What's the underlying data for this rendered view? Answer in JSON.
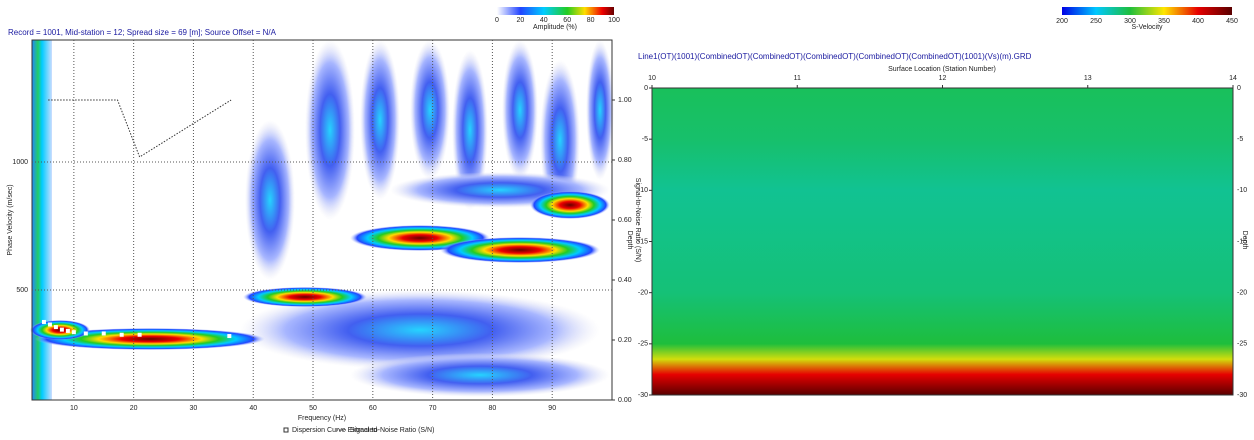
{
  "chart_data": [
    {
      "type": "dispersion",
      "title": "Record = 1001, Mid-station = 12; Spread size = 69 [m]; Source Offset = N/A",
      "xlabel": "Frequency (Hz)",
      "ylabel": "Phase Velocity (m/sec)",
      "y2label": "Signal-to-Noise Ratio (S/N)",
      "xlim": [
        3,
        100
      ],
      "xticks": [
        10,
        20,
        30,
        40,
        50,
        60,
        70,
        80,
        90
      ],
      "ylim": [
        70,
        1477
      ],
      "yticks": [
        500,
        1000
      ],
      "y2lim": [
        0,
        1.2
      ],
      "y2ticks": [
        {
          "value": 0,
          "label": "0.00"
        },
        {
          "value": 0.2,
          "label": "0.20"
        },
        {
          "value": 0.4,
          "label": "0.40"
        },
        {
          "value": 0.6,
          "label": "0.60"
        },
        {
          "value": 0.8,
          "label": "0.80"
        },
        {
          "value": 1,
          "label": "1.00"
        }
      ],
      "grid": true,
      "colorbar": {
        "label": "Amplitude (%)",
        "ticks": [
          0,
          20,
          40,
          60,
          80,
          100
        ]
      },
      "series": [
        {
          "name": "Dispersion Curve Extracted",
          "color": "#ffffff",
          "x": [
            5,
            6,
            7,
            8,
            9,
            10,
            12,
            15,
            18,
            21,
            36
          ],
          "values": [
            375,
            365,
            355,
            345,
            340,
            335,
            330,
            330,
            325,
            325,
            320
          ]
        },
        {
          "name": "Signal-to-Noise Ratio (S/N)",
          "color": "#333333",
          "axis": "y2",
          "x": [
            5.7,
            17.3,
            21,
            36.3
          ],
          "values": [
            1,
            1,
            0.81,
            1
          ]
        }
      ]
    },
    {
      "type": "grid",
      "title": "Line1(OT)(1001)(CombinedOT)(CombinedOT)(CombinedOT)(CombinedOT)(CombinedOT)(1001)(Vs)(m).GRD",
      "xlabel": "Surface Location (Station Number)",
      "ylabel": "Depth",
      "xlim": [
        10,
        14
      ],
      "xticks": [
        10,
        11,
        12,
        13,
        14
      ],
      "ylim": [
        -30,
        0
      ],
      "yticks": [
        0,
        -5,
        -10,
        -15,
        -20,
        -25,
        -30
      ],
      "colorbar": {
        "label": "S-Velocity",
        "ticks": [
          200,
          250,
          300,
          350,
          400,
          450
        ]
      },
      "depths": [
        0,
        -5,
        -10,
        -20,
        -25,
        -26.5,
        -28,
        -30
      ],
      "velocities": [
        292,
        288,
        278,
        285,
        300,
        340,
        400,
        450
      ]
    }
  ]
}
